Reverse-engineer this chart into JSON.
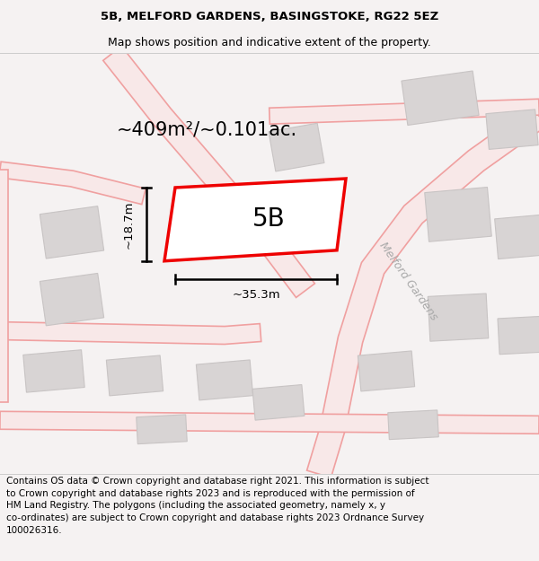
{
  "title_line1": "5B, MELFORD GARDENS, BASINGSTOKE, RG22 5EZ",
  "title_line2": "Map shows position and indicative extent of the property.",
  "footer_text": "Contains OS data © Crown copyright and database right 2021. This information is subject\nto Crown copyright and database rights 2023 and is reproduced with the permission of\nHM Land Registry. The polygons (including the associated geometry, namely x, y\nco-ordinates) are subject to Crown copyright and database rights 2023 Ordnance Survey\n100026316.",
  "area_label": "~409m²/~0.101ac.",
  "label_5B": "5B",
  "dim_width": "~35.3m",
  "dim_height": "~18.7m",
  "street_label": "Melford Gardens",
  "bg_color": "#f5f2f2",
  "map_bg": "#ffffff",
  "plot_edge_color": "#ee0000",
  "road_line_color": "#f0a0a0",
  "road_fill_color": "#f8e8e8",
  "building_color": "#d8d4d4",
  "building_edge_color": "#c8c4c4",
  "title_fontsize": 9.5,
  "footer_fontsize": 7.5,
  "area_label_fontsize": 15,
  "label_5B_fontsize": 20,
  "dim_fontsize": 9.5,
  "street_fontsize": 9,
  "road_lw": 1.2,
  "plot_lw": 2.5
}
